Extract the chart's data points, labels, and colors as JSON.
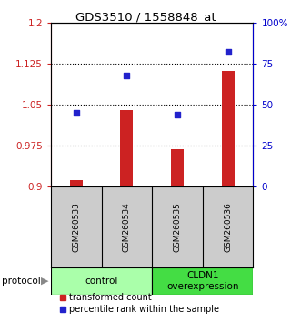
{
  "title": "GDS3510 / 1558848_at",
  "samples": [
    "GSM260533",
    "GSM260534",
    "GSM260535",
    "GSM260536"
  ],
  "bar_values": [
    0.912,
    1.04,
    0.968,
    1.112
  ],
  "scatter_values": [
    45,
    68,
    44,
    82
  ],
  "bar_color": "#cc2222",
  "scatter_color": "#2222cc",
  "ylim_left": [
    0.9,
    1.2
  ],
  "ylim_right": [
    0,
    100
  ],
  "yticks_left": [
    0.9,
    0.975,
    1.05,
    1.125,
    1.2
  ],
  "ytick_labels_left": [
    "0.9",
    "0.975",
    "1.05",
    "1.125",
    "1.2"
  ],
  "yticks_right": [
    0,
    25,
    50,
    75,
    100
  ],
  "ytick_labels_right": [
    "0",
    "25",
    "50",
    "75",
    "100%"
  ],
  "groups": [
    {
      "label": "control",
      "samples": [
        0,
        1
      ],
      "color": "#aaffaa"
    },
    {
      "label": "CLDN1\noverexpression",
      "samples": [
        2,
        3
      ],
      "color": "#44dd44"
    }
  ],
  "protocol_label": "protocol",
  "legend_bar_label": "transformed count",
  "legend_scatter_label": "percentile rank within the sample",
  "plot_bg_color": "#ffffff",
  "sample_box_color": "#cccccc",
  "bar_width": 0.25
}
